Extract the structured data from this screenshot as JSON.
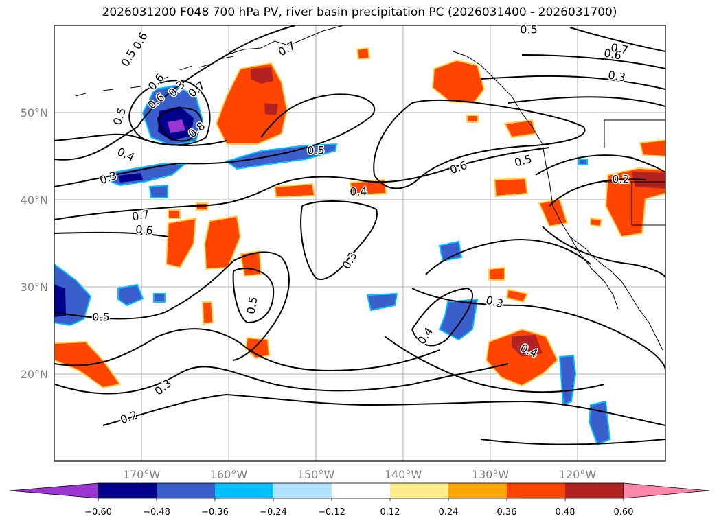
{
  "title": "2026031200 F048 700 hPa PV, river basin precipitation PC (2026031400 - 2026031700)",
  "map": {
    "lon_ticks": [
      "170°W",
      "160°W",
      "150°W",
      "140°W",
      "130°W",
      "120°W"
    ],
    "lat_ticks": [
      "50°N",
      "40°N",
      "30°N",
      "20°N"
    ],
    "gridlines": true,
    "tick_color": "#808080"
  },
  "contour_labels": [
    "0.6",
    "0.5",
    "0.7",
    "0.6",
    "0.3",
    "0.6",
    "0.7",
    "0.8",
    "0.5",
    "0.4",
    "0.3",
    "0.5",
    "0.7",
    "0.6",
    "0.5",
    "0.4",
    "0.3",
    "0.6",
    "0.5",
    "0.2",
    "0.7",
    "0.6",
    "0.5",
    "0.5",
    "0.3",
    "0.4",
    "0.4",
    "0.3",
    "0.2",
    "0.3"
  ],
  "colorbar": {
    "colors": [
      "#9a35d2",
      "#00008b",
      "#3a5fcd",
      "#00bfff",
      "#b0e2ff",
      "#ffffff",
      "#ffec8b",
      "#ffa500",
      "#ff4500",
      "#b22222",
      "#ff88aa"
    ],
    "tick_labels": [
      "−0.60",
      "−0.48",
      "−0.36",
      "−0.24",
      "−0.12",
      "0.12",
      "0.24",
      "0.36",
      "0.48",
      "0.60"
    ]
  }
}
